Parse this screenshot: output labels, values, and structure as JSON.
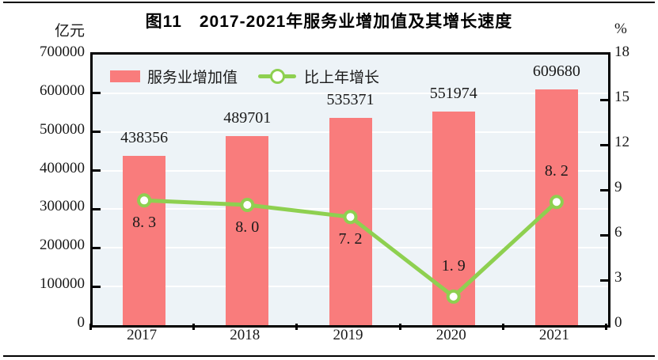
{
  "chart_data": {
    "type": "bar+line",
    "title": "图11　2017-2021年服务业增加值及其增长速度",
    "categories": [
      "2017",
      "2018",
      "2019",
      "2020",
      "2021"
    ],
    "series": [
      {
        "name": "服务业增加值",
        "type": "bar",
        "axis": "left",
        "unit": "亿元",
        "values": [
          438356,
          489701,
          535371,
          551974,
          609680
        ],
        "labels": [
          "438356",
          "489701",
          "535371",
          "551974",
          "609680"
        ]
      },
      {
        "name": "比上年增长",
        "type": "line",
        "axis": "right",
        "unit": "%",
        "values": [
          8.3,
          8.0,
          7.2,
          1.9,
          8.2
        ],
        "labels": [
          "8. 3",
          "8. 0",
          "7. 2",
          "1. 9",
          "8. 2"
        ]
      }
    ],
    "axes": {
      "left": {
        "unit": "亿元",
        "min": 0,
        "max": 700000,
        "step": 100000,
        "tick_labels": [
          "0",
          "100000",
          "200000",
          "300000",
          "400000",
          "500000",
          "600000",
          "700000"
        ]
      },
      "right": {
        "unit": "%",
        "min": 0,
        "max": 18,
        "step": 3,
        "tick_labels": [
          "0",
          "3",
          "6",
          "9",
          "12",
          "15",
          "18"
        ]
      }
    },
    "grid": true,
    "legend_position": "top-left-inside",
    "colors": {
      "bar": "#f97c7c",
      "line": "#8ed050",
      "marker_fill": "#ffffff",
      "plot_bg": "#edf3f7",
      "grid": "#ffffff",
      "frame": "#000000",
      "text": "#1a1a1a"
    }
  }
}
